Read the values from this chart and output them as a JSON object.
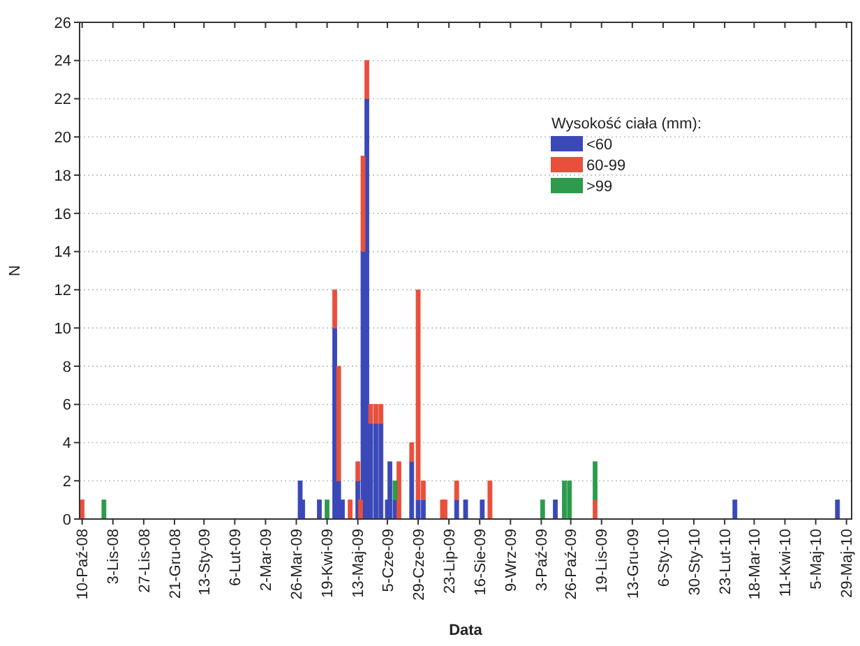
{
  "chart_data": {
    "type": "bar",
    "stacked": true,
    "xlabel": "Data",
    "ylabel": "N",
    "legend_title": "Wysokość ciała (mm):",
    "legend": "top right",
    "grid": "y",
    "x": [
      "2008-10-10",
      "2008-10-27",
      "2009-03-29",
      "2009-03-31",
      "2009-04-13",
      "2009-04-19",
      "2009-04-25",
      "2009-04-28",
      "2009-05-01",
      "2009-05-07",
      "2009-05-13",
      "2009-05-15",
      "2009-05-17",
      "2009-05-20",
      "2009-05-23",
      "2009-05-27",
      "2009-05-31",
      "2009-06-05",
      "2009-06-07",
      "2009-06-11",
      "2009-06-14",
      "2009-06-24",
      "2009-06-29",
      "2009-07-03",
      "2009-07-18",
      "2009-07-20",
      "2009-07-29",
      "2009-08-05",
      "2009-08-18",
      "2009-08-24",
      "2009-10-04",
      "2009-10-14",
      "2009-10-21",
      "2009-10-25",
      "2009-11-14",
      "2010-03-03",
      "2010-05-22"
    ],
    "series": [
      {
        "name": "<60",
        "color": "#3a48b8",
        "values": [
          0,
          0,
          2,
          1,
          1,
          0,
          10,
          2,
          1,
          0,
          2,
          0,
          14,
          22,
          5,
          5,
          5,
          1,
          3,
          1,
          0,
          3,
          1,
          1,
          0,
          0,
          1,
          1,
          1,
          0,
          0,
          1,
          0,
          0,
          0,
          1,
          1
        ]
      },
      {
        "name": "60-99",
        "color": "#e8503c",
        "values": [
          1,
          0,
          0,
          0,
          0,
          0,
          2,
          6,
          0,
          1,
          1,
          1,
          5,
          2,
          1,
          1,
          1,
          0,
          0,
          0,
          3,
          1,
          11,
          1,
          1,
          1,
          1,
          0,
          0,
          2,
          0,
          0,
          0,
          0,
          1,
          0,
          0
        ]
      },
      {
        "name": ">99",
        "color": "#2e9a4c",
        "values": [
          0,
          1,
          0,
          0,
          0,
          1,
          0,
          0,
          0,
          0,
          0,
          0,
          0,
          0,
          0,
          0,
          0,
          0,
          0,
          1,
          0,
          0,
          0,
          0,
          0,
          0,
          0,
          0,
          0,
          0,
          1,
          0,
          2,
          2,
          2,
          0,
          0
        ]
      }
    ],
    "xlim": [
      "2008-10-08",
      "2010-06-02"
    ],
    "xticks": [
      {
        "value": "2008-10-10",
        "label": "10-Paź-08"
      },
      {
        "value": "2008-11-03",
        "label": "3-Lis-08"
      },
      {
        "value": "2008-11-27",
        "label": "27-Lis-08"
      },
      {
        "value": "2008-12-21",
        "label": "21-Gru-08"
      },
      {
        "value": "2009-01-13",
        "label": "13-Sty-09"
      },
      {
        "value": "2009-02-06",
        "label": "6-Lut-09"
      },
      {
        "value": "2009-03-02",
        "label": "2-Mar-09"
      },
      {
        "value": "2009-03-26",
        "label": "26-Mar-09"
      },
      {
        "value": "2009-04-19",
        "label": "19-Kwi-09"
      },
      {
        "value": "2009-05-13",
        "label": "13-Maj-09"
      },
      {
        "value": "2009-06-05",
        "label": "5-Cze-09"
      },
      {
        "value": "2009-06-29",
        "label": "29-Cze-09"
      },
      {
        "value": "2009-07-23",
        "label": "23-Lip-09"
      },
      {
        "value": "2009-08-16",
        "label": "16-Sie-09"
      },
      {
        "value": "2009-09-09",
        "label": "9-Wrz-09"
      },
      {
        "value": "2009-10-03",
        "label": "3-Paź-09"
      },
      {
        "value": "2009-10-26",
        "label": "26-Paź-09"
      },
      {
        "value": "2009-11-19",
        "label": "19-Lis-09"
      },
      {
        "value": "2009-12-13",
        "label": "13-Gru-09"
      },
      {
        "value": "2010-01-06",
        "label": "6-Sty-10"
      },
      {
        "value": "2010-01-30",
        "label": "30-Sty-10"
      },
      {
        "value": "2010-02-23",
        "label": "23-Lut-10"
      },
      {
        "value": "2010-03-18",
        "label": "18-Mar-10"
      },
      {
        "value": "2010-04-11",
        "label": "11-Kwi-10"
      },
      {
        "value": "2010-05-05",
        "label": "5-Maj-10"
      },
      {
        "value": "2010-05-29",
        "label": "29-Maj-10"
      }
    ],
    "ylim": [
      0,
      26
    ],
    "yticks": [
      0,
      2,
      4,
      6,
      8,
      10,
      12,
      14,
      16,
      18,
      20,
      22,
      24,
      26
    ]
  }
}
